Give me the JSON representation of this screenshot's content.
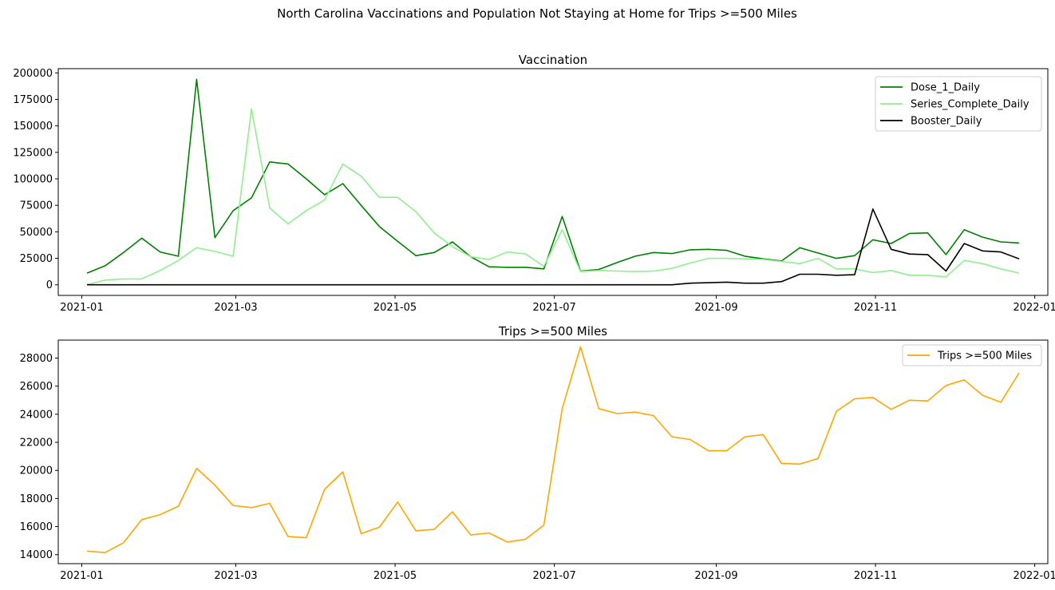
{
  "figure": {
    "suptitle": "North Carolina Vaccinations and Population Not Staying at Home for Trips >=500 Miles"
  },
  "chart_data": [
    {
      "type": "line",
      "title": "Vaccination",
      "xlabel": "",
      "ylabel": "",
      "x_axis": "date",
      "xlim": [
        "2020-12-23",
        "2022-01-06"
      ],
      "ylim": [
        -10000,
        204000
      ],
      "x_ticks": [
        "2021-01",
        "2021-03",
        "2021-05",
        "2021-07",
        "2021-09",
        "2021-11",
        "2022-01"
      ],
      "x_tick_dates": [
        "2021-01-01",
        "2021-03-01",
        "2021-05-01",
        "2021-07-01",
        "2021-09-01",
        "2021-11-01",
        "2022-01-01"
      ],
      "y_ticks": [
        0,
        25000,
        50000,
        75000,
        100000,
        125000,
        150000,
        175000,
        200000
      ],
      "grid": false,
      "legend": "upper right",
      "x": [
        "2021-01-03",
        "2021-01-10",
        "2021-01-17",
        "2021-01-24",
        "2021-01-31",
        "2021-02-07",
        "2021-02-14",
        "2021-02-21",
        "2021-02-28",
        "2021-03-07",
        "2021-03-14",
        "2021-03-21",
        "2021-03-28",
        "2021-04-04",
        "2021-04-11",
        "2021-04-18",
        "2021-04-25",
        "2021-05-02",
        "2021-05-09",
        "2021-05-16",
        "2021-05-23",
        "2021-05-30",
        "2021-06-06",
        "2021-06-13",
        "2021-06-20",
        "2021-06-27",
        "2021-07-04",
        "2021-07-11",
        "2021-07-18",
        "2021-07-25",
        "2021-08-01",
        "2021-08-08",
        "2021-08-15",
        "2021-08-22",
        "2021-08-29",
        "2021-09-05",
        "2021-09-12",
        "2021-09-19",
        "2021-09-26",
        "2021-10-03",
        "2021-10-10",
        "2021-10-17",
        "2021-10-24",
        "2021-10-31",
        "2021-11-07",
        "2021-11-14",
        "2021-11-21",
        "2021-11-28",
        "2021-12-05",
        "2021-12-12",
        "2021-12-19",
        "2021-12-26"
      ],
      "series": [
        {
          "name": "Dose_1_Daily",
          "color": "#008000",
          "values": [
            11000,
            18000,
            30500,
            44000,
            31000,
            27000,
            194000,
            44500,
            70000,
            82000,
            116000,
            114000,
            100000,
            85000,
            95500,
            75000,
            55000,
            41000,
            27500,
            30500,
            40500,
            26500,
            17000,
            16500,
            16500,
            15000,
            64500,
            13000,
            14500,
            21000,
            27000,
            30500,
            29500,
            33000,
            33500,
            32500,
            27000,
            24500,
            22500,
            35000,
            30000,
            25000,
            27500,
            42500,
            39000,
            48500,
            49000,
            28500,
            52000,
            45000,
            40500,
            39500
          ]
        },
        {
          "name": "Series_Complete_Daily",
          "color": "#90ee90",
          "values": [
            0,
            4500,
            5500,
            5500,
            13500,
            23000,
            35000,
            31500,
            27000,
            166000,
            72500,
            57500,
            70000,
            80000,
            114000,
            102500,
            82500,
            82500,
            69000,
            49000,
            36000,
            26500,
            24000,
            31000,
            29000,
            17500,
            52000,
            12500,
            13500,
            13000,
            12500,
            13000,
            15500,
            20500,
            25000,
            25000,
            24500,
            24000,
            22000,
            20000,
            25000,
            15000,
            15000,
            11500,
            13500,
            9000,
            9000,
            7500,
            23000,
            20000,
            15000,
            11000
          ]
        },
        {
          "name": "Booster_Daily",
          "color": "#000000",
          "values": [
            0,
            0,
            0,
            0,
            0,
            0,
            0,
            0,
            0,
            0,
            0,
            0,
            0,
            0,
            0,
            0,
            0,
            0,
            0,
            0,
            0,
            0,
            0,
            0,
            0,
            0,
            0,
            0,
            0,
            0,
            0,
            0,
            0,
            1500,
            2000,
            2500,
            1500,
            1500,
            3000,
            10000,
            10000,
            9000,
            9500,
            71500,
            33500,
            29000,
            28500,
            13000,
            39000,
            32000,
            31000,
            24500
          ]
        }
      ]
    },
    {
      "type": "line",
      "title": "Trips >=500 Miles",
      "xlabel": "",
      "ylabel": "",
      "x_axis": "date",
      "xlim": [
        "2020-12-23",
        "2022-01-06"
      ],
      "ylim": [
        13360,
        29280
      ],
      "x_ticks": [
        "2021-01",
        "2021-03",
        "2021-05",
        "2021-07",
        "2021-09",
        "2021-11",
        "2022-01"
      ],
      "x_tick_dates": [
        "2021-01-01",
        "2021-03-01",
        "2021-05-01",
        "2021-07-01",
        "2021-09-01",
        "2021-11-01",
        "2022-01-01"
      ],
      "y_ticks": [
        14000,
        16000,
        18000,
        20000,
        22000,
        24000,
        26000,
        28000
      ],
      "grid": false,
      "legend": "upper right",
      "x": [
        "2021-01-03",
        "2021-01-10",
        "2021-01-17",
        "2021-01-24",
        "2021-01-31",
        "2021-02-07",
        "2021-02-14",
        "2021-02-21",
        "2021-02-28",
        "2021-03-07",
        "2021-03-14",
        "2021-03-21",
        "2021-03-28",
        "2021-04-04",
        "2021-04-11",
        "2021-04-18",
        "2021-04-25",
        "2021-05-02",
        "2021-05-09",
        "2021-05-16",
        "2021-05-23",
        "2021-05-30",
        "2021-06-06",
        "2021-06-13",
        "2021-06-20",
        "2021-06-27",
        "2021-07-04",
        "2021-07-11",
        "2021-07-18",
        "2021-07-25",
        "2021-08-01",
        "2021-08-08",
        "2021-08-15",
        "2021-08-22",
        "2021-08-29",
        "2021-09-05",
        "2021-09-12",
        "2021-09-19",
        "2021-09-26",
        "2021-10-03",
        "2021-10-10",
        "2021-10-17",
        "2021-10-24",
        "2021-10-31",
        "2021-11-07",
        "2021-11-14",
        "2021-11-21",
        "2021-11-28",
        "2021-12-05",
        "2021-12-12",
        "2021-12-19",
        "2021-12-26"
      ],
      "series": [
        {
          "name": "Trips >=500 Miles",
          "color": "#ffa500",
          "values": [
            14250,
            14150,
            14850,
            16500,
            16850,
            17450,
            20150,
            18950,
            17500,
            17350,
            17650,
            15300,
            15200,
            18650,
            19900,
            15500,
            15950,
            17750,
            15700,
            15800,
            17050,
            15400,
            15550,
            14900,
            15100,
            16100,
            24400,
            28800,
            24400,
            24050,
            24150,
            23900,
            22400,
            22200,
            21400,
            21400,
            22400,
            22550,
            20500,
            20450,
            20850,
            24200,
            25100,
            25200,
            24350,
            25000,
            24950,
            26050,
            26450,
            25350,
            24850,
            26950
          ]
        }
      ]
    }
  ]
}
